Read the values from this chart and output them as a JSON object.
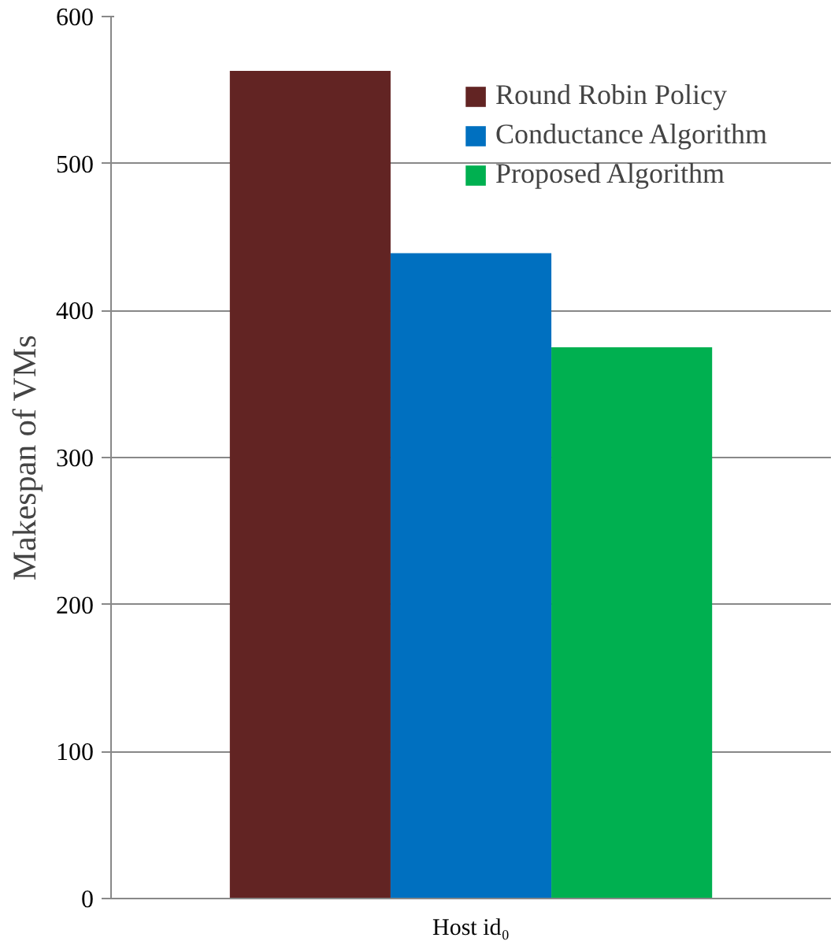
{
  "chart_data": {
    "type": "bar",
    "ylabel": "Makespan of VMs",
    "categories": [
      "Host id₀"
    ],
    "series": [
      {
        "name": "Round Robin Policy",
        "color": "#622423",
        "values": [
          563
        ]
      },
      {
        "name": "Conductance Algorithm",
        "color": "#0070c0",
        "values": [
          439
        ]
      },
      {
        "name": "Proposed Algorithm",
        "color": "#00b050",
        "values": [
          375
        ]
      }
    ],
    "ylim": [
      0,
      600
    ],
    "yticks": [
      0,
      100,
      200,
      300,
      400,
      500,
      600
    ],
    "grid": "y",
    "legend": "top right"
  }
}
